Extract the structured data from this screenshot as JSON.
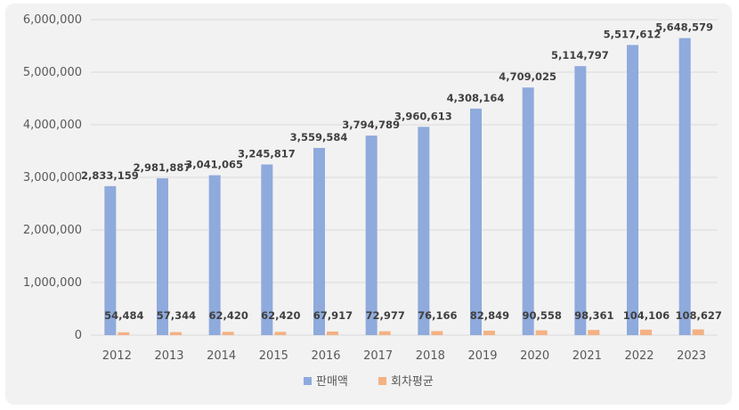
{
  "chart_data": {
    "type": "bar",
    "title": "",
    "xlabel": "",
    "ylabel": "",
    "categories": [
      "2012",
      "2013",
      "2014",
      "2015",
      "2016",
      "2017",
      "2018",
      "2019",
      "2020",
      "2021",
      "2022",
      "2023"
    ],
    "series": [
      {
        "name": "판매액",
        "color": "#8faadc",
        "values": [
          2833159,
          2981887,
          3041065,
          3245817,
          3559584,
          3794789,
          3960613,
          4308164,
          4709025,
          5114797,
          5517612,
          5648579
        ],
        "labels": [
          "2,833,159",
          "2,981,887",
          "3,041,065",
          "3,245,817",
          "3,559,584",
          "3,794,789",
          "3,960,613",
          "4,308,164",
          "4,709,025",
          "5,114,797",
          "5,517,612",
          "5,648,579"
        ]
      },
      {
        "name": "회차평균",
        "color": "#f4b183",
        "values": [
          54484,
          57344,
          62420,
          62420,
          67917,
          72977,
          76166,
          82849,
          90558,
          98361,
          104106,
          108627
        ],
        "labels": [
          "54,484",
          "57,344",
          "62,420",
          "62,420",
          "67,917",
          "72,977",
          "76,166",
          "82,849",
          "90,558",
          "98,361",
          "104,106",
          "108,627"
        ]
      }
    ],
    "ylim": [
      0,
      6000000
    ],
    "yticks": [
      0,
      1000000,
      2000000,
      3000000,
      4000000,
      5000000,
      6000000
    ],
    "ytick_labels": [
      "0",
      "1,000,000",
      "2,000,000",
      "3,000,000",
      "4,000,000",
      "5,000,000",
      "6,000,000"
    ],
    "grid": true,
    "legend_position": "bottom"
  }
}
